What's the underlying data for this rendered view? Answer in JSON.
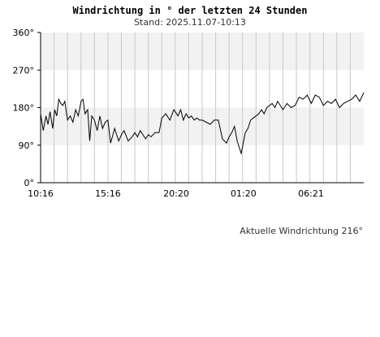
{
  "title": "Windrichtung in ° der letzten 24 Stunden",
  "subtitle": "Stand: 2025.11.07-10:13",
  "current_label": "Aktuelle Windrichtung 216°",
  "chart_data": {
    "type": "line",
    "title": "Windrichtung in ° der letzten 24 Stunden",
    "subtitle": "Stand: 2025.11.07-10:13",
    "xlabel": "",
    "ylabel": "",
    "ylim": [
      0,
      360
    ],
    "xlim": [
      0,
      24
    ],
    "yticks": [
      0,
      90,
      180,
      270,
      360
    ],
    "ytick_labels": [
      "0°",
      "90°",
      "180°",
      "270°",
      "360°"
    ],
    "xtick_labels": [
      {
        "label": "10:16",
        "x": 0
      },
      {
        "label": "15:16",
        "x": 5
      },
      {
        "label": "20:20",
        "x": 10.07
      },
      {
        "label": "01:20",
        "x": 15.07
      },
      {
        "label": "06:21",
        "x": 20.08
      }
    ],
    "shaded_bands": [
      [
        90,
        180
      ],
      [
        270,
        360
      ]
    ],
    "vertical_grid": true,
    "series": [
      {
        "color": "#000000",
        "x": [
          0,
          0.2,
          0.4,
          0.55,
          0.7,
          0.9,
          1.05,
          1.2,
          1.35,
          1.5,
          1.65,
          1.8,
          2.0,
          2.2,
          2.4,
          2.6,
          2.8,
          3.0,
          3.15,
          3.3,
          3.5,
          3.65,
          3.8,
          4.0,
          4.2,
          4.4,
          4.6,
          4.8,
          5.0,
          5.2,
          5.5,
          5.8,
          6.0,
          6.2,
          6.5,
          6.8,
          7.0,
          7.2,
          7.4,
          7.6,
          7.8,
          8.0,
          8.2,
          8.5,
          8.8,
          9.0,
          9.3,
          9.6,
          9.9,
          10.2,
          10.4,
          10.6,
          10.8,
          11.0,
          11.2,
          11.4,
          11.6,
          11.8,
          12.0,
          12.3,
          12.6,
          12.9,
          13.2,
          13.5,
          13.8,
          14.0,
          14.2,
          14.4,
          14.6,
          14.9,
          15.2,
          15.4,
          15.6,
          15.8,
          16.0,
          16.2,
          16.4,
          16.6,
          16.8,
          17.0,
          17.2,
          17.4,
          17.6,
          17.8,
          18.0,
          18.3,
          18.6,
          18.9,
          19.2,
          19.5,
          19.8,
          20.1,
          20.4,
          20.7,
          21.0,
          21.3,
          21.6,
          21.9,
          22.2,
          22.5,
          22.8,
          23.1,
          23.4,
          23.7,
          24.0
        ],
        "y": [
          165,
          125,
          160,
          140,
          170,
          130,
          175,
          160,
          200,
          190,
          185,
          195,
          150,
          160,
          145,
          175,
          160,
          195,
          200,
          165,
          175,
          100,
          160,
          150,
          125,
          160,
          130,
          145,
          150,
          95,
          130,
          100,
          115,
          125,
          100,
          110,
          120,
          110,
          125,
          115,
          105,
          115,
          110,
          120,
          120,
          155,
          165,
          150,
          175,
          160,
          175,
          150,
          165,
          155,
          160,
          150,
          155,
          150,
          150,
          145,
          140,
          150,
          150,
          105,
          95,
          110,
          120,
          135,
          100,
          70,
          120,
          130,
          150,
          155,
          160,
          165,
          175,
          165,
          180,
          185,
          190,
          180,
          195,
          185,
          175,
          190,
          180,
          185,
          205,
          200,
          210,
          190,
          210,
          205,
          185,
          195,
          190,
          200,
          180,
          190,
          195,
          200,
          210,
          195,
          216
        ]
      }
    ]
  }
}
